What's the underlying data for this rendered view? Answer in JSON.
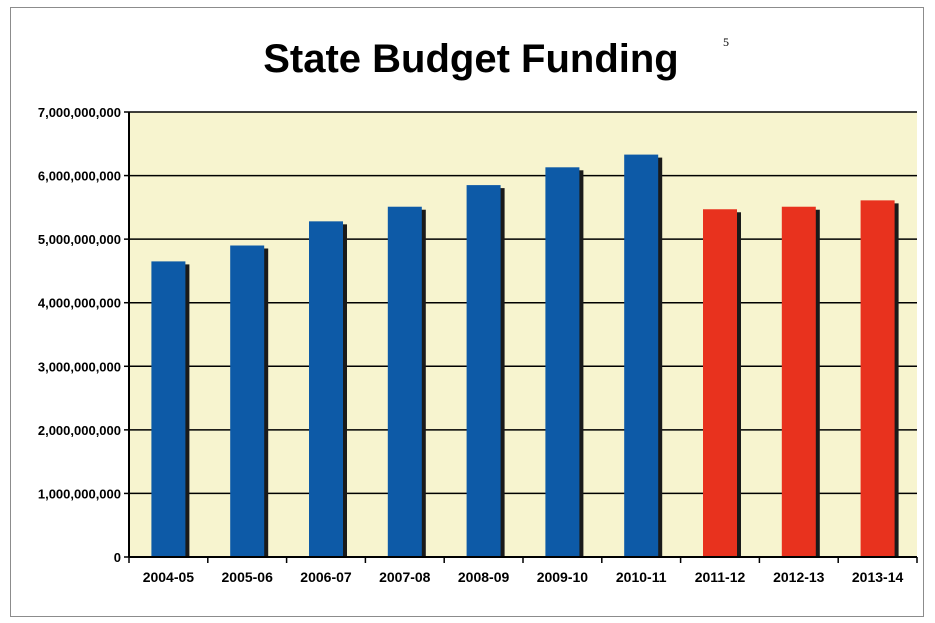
{
  "chart_data": {
    "type": "bar",
    "title": "State Budget Funding",
    "title_superscript": "5",
    "xlabel": "",
    "ylabel": "",
    "categories": [
      "2004-05",
      "2005-06",
      "2006-07",
      "2007-08",
      "2008-09",
      "2009-10",
      "2010-11",
      "2011-12",
      "2012-13",
      "2013-14"
    ],
    "values": [
      4650000000,
      4900000000,
      5280000000,
      5510000000,
      5850000000,
      6130000000,
      6330000000,
      5470000000,
      5510000000,
      5610000000
    ],
    "bar_colors": [
      "#0d5aa7",
      "#0d5aa7",
      "#0d5aa7",
      "#0d5aa7",
      "#0d5aa7",
      "#0d5aa7",
      "#0d5aa7",
      "#e8321e",
      "#e8321e",
      "#e8321e"
    ],
    "ylim": [
      0,
      7000000000
    ],
    "yticks": [
      0,
      1000000000,
      2000000000,
      3000000000,
      4000000000,
      5000000000,
      6000000000,
      7000000000
    ],
    "ytick_labels": [
      "0",
      "1,000,000,000",
      "2,000,000,000",
      "3,000,000,000",
      "4,000,000,000",
      "5,000,000,000",
      "6,000,000,000",
      "7,000,000,000"
    ],
    "grid": true,
    "legend": "none",
    "plot_background": "#f7f4cf"
  }
}
